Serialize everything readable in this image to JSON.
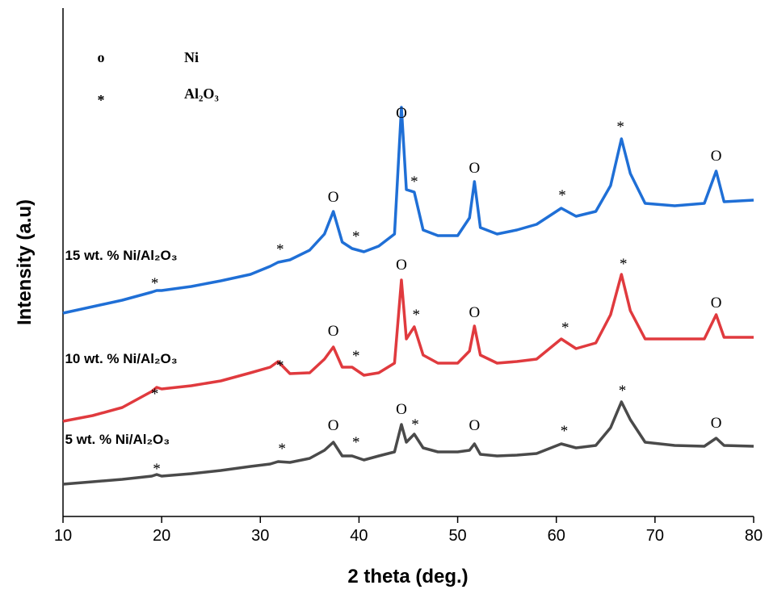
{
  "chart_data": {
    "type": "line",
    "xlabel": "2 theta (deg.)",
    "ylabel": "Intensity (a.u)",
    "xlim": [
      10,
      80
    ],
    "xticks": [
      10,
      20,
      30,
      40,
      50,
      60,
      70,
      80
    ],
    "ylim": [
      0,
      630
    ],
    "x": [
      10,
      13,
      16,
      19,
      19.5,
      20,
      23,
      26,
      29,
      31,
      31.8,
      33,
      35,
      36.5,
      37.4,
      38.3,
      39.3,
      40.5,
      42,
      43.6,
      44.3,
      44.8,
      45.6,
      46.5,
      48,
      50,
      51.2,
      51.7,
      52.3,
      54,
      56,
      58,
      60.5,
      62,
      64,
      65.5,
      66.6,
      67.5,
      69,
      72,
      75,
      76.2,
      77,
      80
    ],
    "series": [
      {
        "name": "15 wt. % Ni/Al₂O₃",
        "color": "#1f6fd6",
        "values": [
          252,
          260,
          268,
          278,
          280,
          280,
          285,
          292,
          300,
          310,
          315,
          318,
          330,
          350,
          378,
          340,
          332,
          328,
          335,
          350,
          507,
          405,
          402,
          355,
          348,
          348,
          370,
          415,
          358,
          350,
          355,
          362,
          382,
          372,
          378,
          410,
          468,
          425,
          388,
          385,
          388,
          428,
          390,
          392
        ]
      },
      {
        "name": "10 wt. % Ni/Al₂O₃",
        "color": "#e03a3e",
        "values": [
          118,
          125,
          135,
          155,
          160,
          158,
          162,
          168,
          178,
          185,
          192,
          177,
          178,
          195,
          210,
          185,
          185,
          175,
          178,
          190,
          293,
          220,
          235,
          200,
          190,
          190,
          205,
          236,
          200,
          190,
          192,
          195,
          220,
          208,
          215,
          250,
          300,
          255,
          220,
          220,
          220,
          250,
          222,
          222
        ]
      },
      {
        "name": "5 wt. % Ni/Al₂O₃",
        "color": "#4a4a4a",
        "values": [
          40,
          43,
          46,
          50,
          52,
          50,
          53,
          57,
          62,
          65,
          68,
          67,
          72,
          82,
          92,
          75,
          75,
          70,
          75,
          80,
          114,
          92,
          102,
          85,
          80,
          80,
          82,
          90,
          77,
          75,
          76,
          78,
          90,
          85,
          88,
          110,
          142,
          120,
          92,
          88,
          87,
          97,
          88,
          87
        ]
      }
    ],
    "series_label_positions": [
      {
        "x": 10.2,
        "y": 318
      },
      {
        "x": 10.2,
        "y": 190
      },
      {
        "x": 10.2,
        "y": 90
      }
    ],
    "legend": [
      {
        "symbol": "o",
        "label": "Ni"
      },
      {
        "symbol": "*",
        "label": "Al₂O₃"
      }
    ],
    "annotations": [
      {
        "text": "*",
        "x": 19.3,
        "y": 295
      },
      {
        "text": "*",
        "x": 32,
        "y": 337
      },
      {
        "text": "O",
        "x": 37.4,
        "y": 396
      },
      {
        "text": "*",
        "x": 39.7,
        "y": 353
      },
      {
        "text": "O",
        "x": 44.3,
        "y": 500
      },
      {
        "text": "*",
        "x": 45.6,
        "y": 421
      },
      {
        "text": "O",
        "x": 51.7,
        "y": 432
      },
      {
        "text": "*",
        "x": 60.6,
        "y": 404
      },
      {
        "text": "*",
        "x": 66.5,
        "y": 489
      },
      {
        "text": "O",
        "x": 76.2,
        "y": 447
      },
      {
        "text": "*",
        "x": 19.3,
        "y": 158
      },
      {
        "text": "*",
        "x": 32,
        "y": 193
      },
      {
        "text": "O",
        "x": 37.4,
        "y": 230
      },
      {
        "text": "*",
        "x": 39.7,
        "y": 205
      },
      {
        "text": "O",
        "x": 44.3,
        "y": 312
      },
      {
        "text": "*",
        "x": 45.8,
        "y": 256
      },
      {
        "text": "O",
        "x": 51.7,
        "y": 253
      },
      {
        "text": "*",
        "x": 60.9,
        "y": 240
      },
      {
        "text": "*",
        "x": 66.8,
        "y": 319
      },
      {
        "text": "O",
        "x": 76.2,
        "y": 265
      },
      {
        "text": "*",
        "x": 19.5,
        "y": 65
      },
      {
        "text": "*",
        "x": 32.2,
        "y": 90
      },
      {
        "text": "O",
        "x": 37.4,
        "y": 113
      },
      {
        "text": "*",
        "x": 39.7,
        "y": 98
      },
      {
        "text": "O",
        "x": 44.3,
        "y": 133
      },
      {
        "text": "*",
        "x": 45.7,
        "y": 120
      },
      {
        "text": "O",
        "x": 51.7,
        "y": 113
      },
      {
        "text": "*",
        "x": 60.8,
        "y": 112
      },
      {
        "text": "*",
        "x": 66.7,
        "y": 162
      },
      {
        "text": "O",
        "x": 76.2,
        "y": 116
      }
    ]
  }
}
